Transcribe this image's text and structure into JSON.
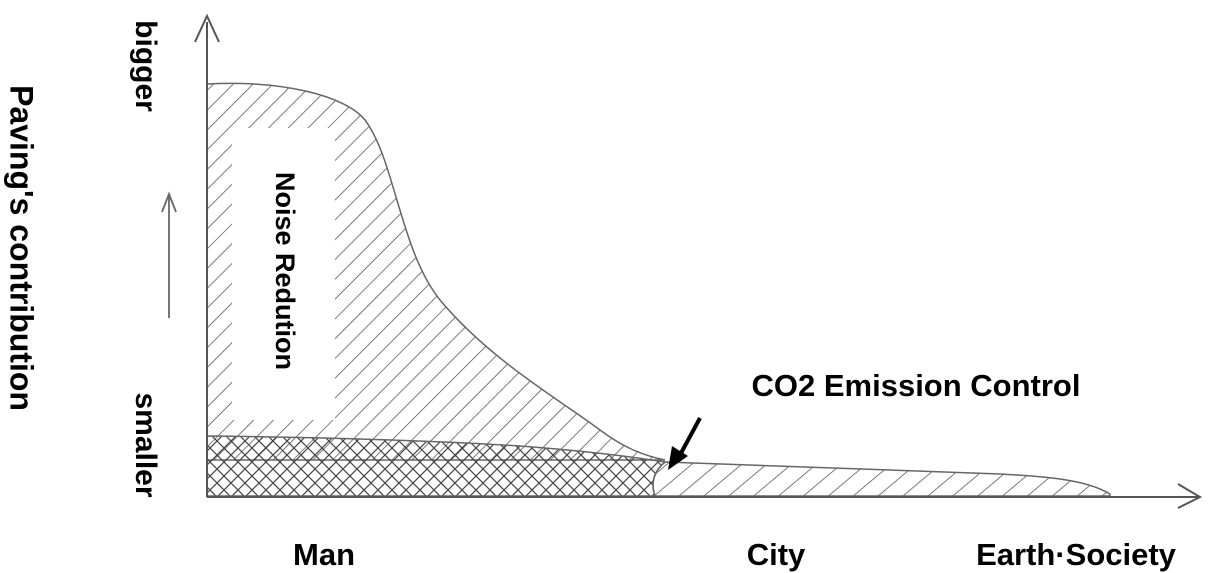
{
  "figure": {
    "y_title": "Paving's contribution",
    "y_high": "bigger",
    "y_low": "smaller",
    "x_labels": [
      "Man",
      "City",
      "Earth·Society"
    ],
    "noise_label": "Noise Redution",
    "co2_label": "CO2 Emission Control"
  },
  "colors": {
    "ink": "#000000",
    "line": "#555555",
    "hatch": "#444444",
    "background": "#ffffff"
  }
}
